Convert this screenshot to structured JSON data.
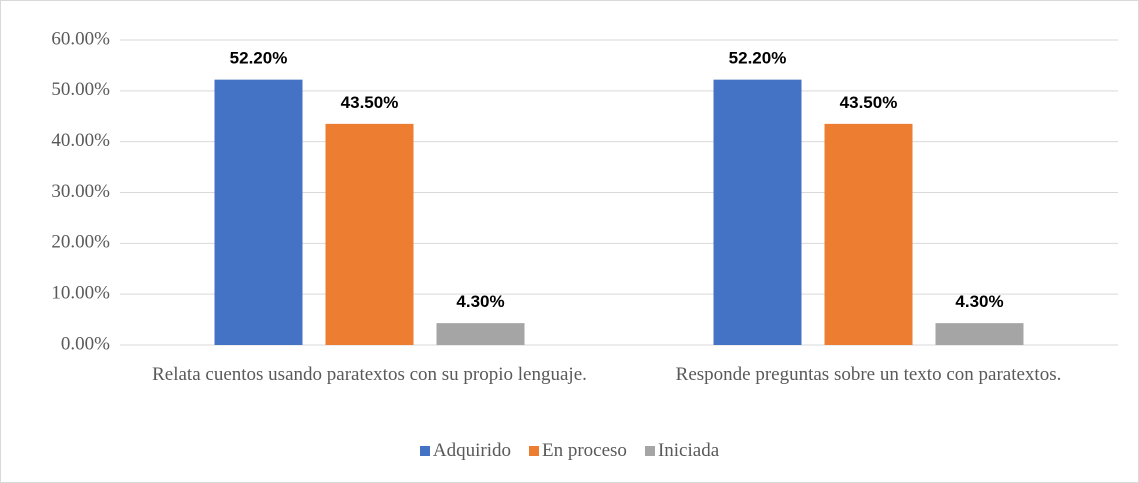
{
  "chart_data": {
    "type": "bar",
    "categories": [
      "Relata cuentos usando paratextos con su propio lenguaje.",
      "Responde preguntas sobre un texto con paratextos."
    ],
    "series": [
      {
        "name": "Adquirido",
        "color": "#4472c4",
        "values": [
          52.2,
          52.2
        ],
        "value_labels": [
          "52.20%",
          "52.20%"
        ]
      },
      {
        "name": "En proceso",
        "color": "#ed7d31",
        "values": [
          43.5,
          43.5
        ],
        "value_labels": [
          "43.50%",
          "43.50%"
        ]
      },
      {
        "name": "Iniciada",
        "color": "#a5a5a5",
        "values": [
          4.3,
          4.3
        ],
        "value_labels": [
          "4.30%",
          "4.30%"
        ]
      }
    ],
    "ylim": [
      0,
      60
    ],
    "yticks": [
      {
        "value": 0,
        "label": "0.00%"
      },
      {
        "value": 10,
        "label": "10.00%"
      },
      {
        "value": 20,
        "label": "20.00%"
      },
      {
        "value": 30,
        "label": "30.00%"
      },
      {
        "value": 40,
        "label": "40.00%"
      },
      {
        "value": 50,
        "label": "50.00%"
      },
      {
        "value": 60,
        "label": "60.00%"
      }
    ],
    "grid": true,
    "legend": "bottom"
  }
}
